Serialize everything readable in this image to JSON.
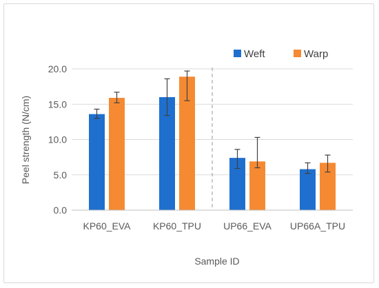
{
  "chart_data": {
    "type": "bar",
    "categories": [
      "KP60_EVA",
      "KP60_TPU",
      "UP66_EVA",
      "UP66A_TPU"
    ],
    "series": [
      {
        "name": "Weft",
        "color": "#1f6fce",
        "values": [
          13.6,
          16.0,
          7.4,
          5.8
        ],
        "err_low": [
          13.0,
          13.4,
          5.9,
          5.2
        ],
        "err_high": [
          14.3,
          18.6,
          8.6,
          6.7
        ]
      },
      {
        "name": "Warp",
        "color": "#f58a32",
        "values": [
          15.9,
          18.9,
          6.9,
          6.7
        ],
        "err_low": [
          15.2,
          15.5,
          6.0,
          5.4
        ],
        "err_high": [
          16.7,
          19.7,
          10.3,
          7.8
        ]
      }
    ],
    "xlabel": "Sample ID",
    "ylabel": "Peel strength (N/cm)",
    "ylim": [
      0,
      20
    ],
    "yticks": [
      "0.0",
      "5.0",
      "10.0",
      "15.0",
      "20.0"
    ],
    "grid": true,
    "legend_position": "top-right",
    "separator": "dashed vertical line between KP60_TPU and UP66_EVA"
  }
}
